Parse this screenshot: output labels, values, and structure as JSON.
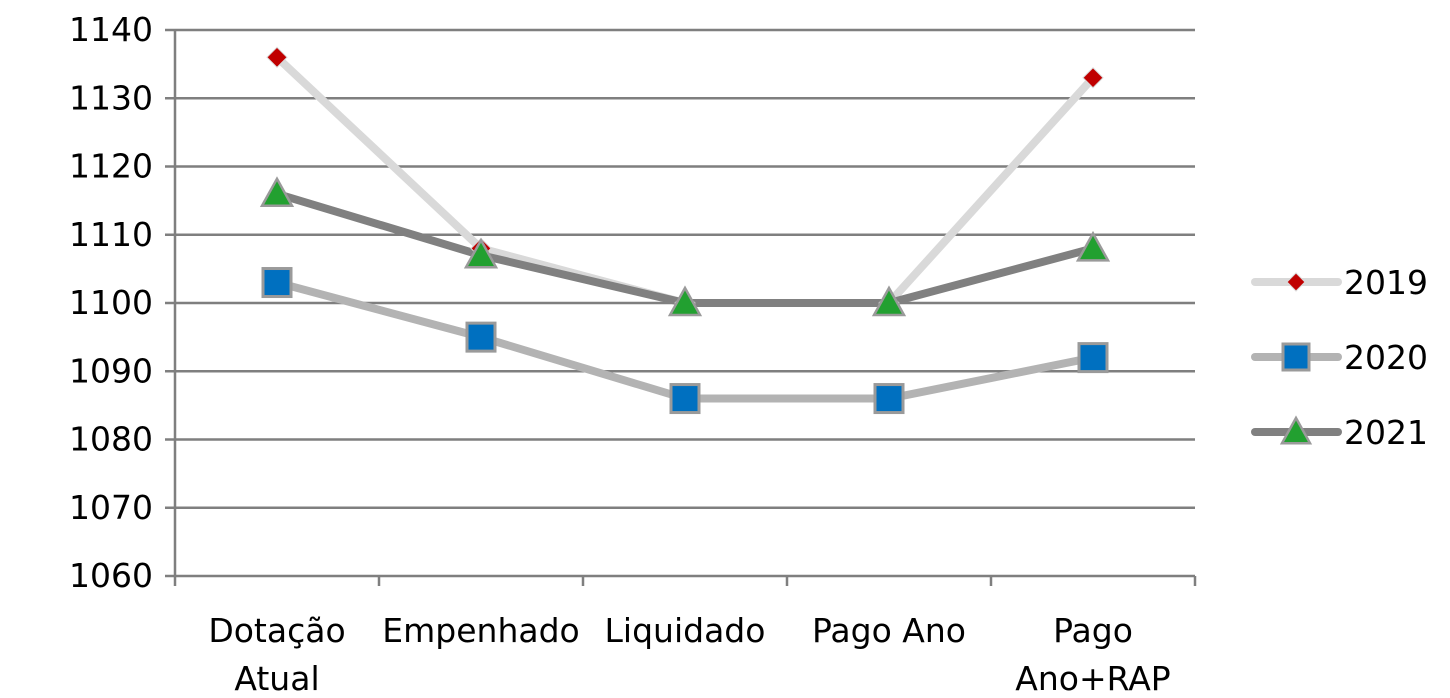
{
  "chart_data": {
    "type": "line",
    "title": "",
    "xlabel": "",
    "ylabel": "",
    "categories": [
      [
        "Dotação",
        "Atual"
      ],
      [
        "Empenhado"
      ],
      [
        "Liquidado"
      ],
      [
        "Pago Ano"
      ],
      [
        "Pago",
        "Ano+RAP"
      ]
    ],
    "ylim": [
      1060,
      1140
    ],
    "yticks": [
      1060,
      1070,
      1080,
      1090,
      1100,
      1110,
      1120,
      1130,
      1140
    ],
    "grid": "horizontal",
    "legend_position": "right",
    "series": [
      {
        "name": "2019",
        "values": [
          1136,
          1108,
          1100,
          1100,
          1133
        ],
        "line_color": "#d9d9d9",
        "marker": "diamond",
        "marker_color": "#c00000"
      },
      {
        "name": "2020",
        "values": [
          1103,
          1095,
          1086,
          1086,
          1092
        ],
        "line_color": "#b3b3b3",
        "marker": "square",
        "marker_color": "#0070c0"
      },
      {
        "name": "2021",
        "values": [
          1116,
          1107,
          1100,
          1100,
          1108
        ],
        "line_color": "#808080",
        "marker": "triangle",
        "marker_color": "#22a030"
      }
    ]
  }
}
